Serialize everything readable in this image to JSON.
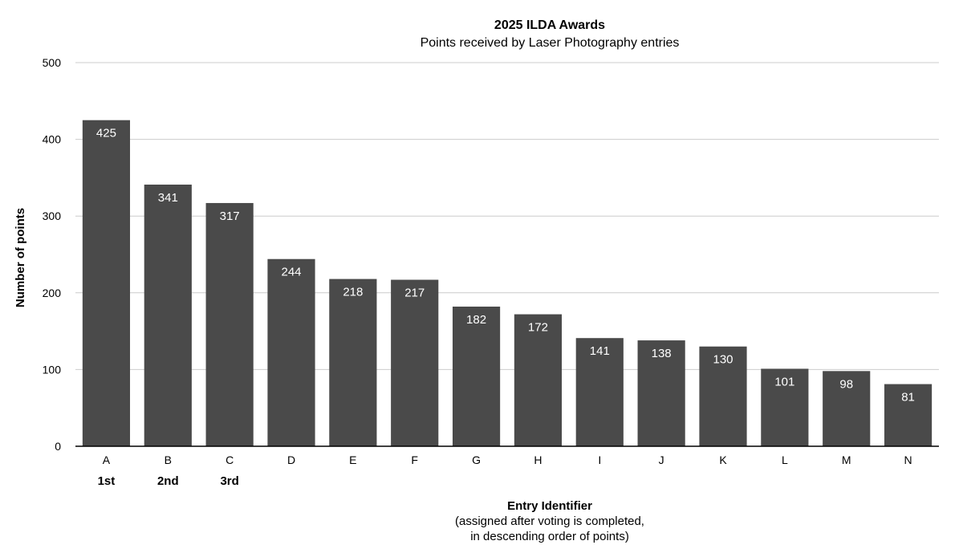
{
  "chart_data": {
    "type": "bar",
    "title": "2025 ILDA Awards",
    "subtitle": "Points received by Laser Photography entries",
    "ylabel": "Number of points",
    "xlabel": "Entry Identifier",
    "xlabel_notes": [
      "(assigned after voting is completed,",
      "in descending order of points)"
    ],
    "categories": [
      "A",
      "B",
      "C",
      "D",
      "E",
      "F",
      "G",
      "H",
      "I",
      "J",
      "K",
      "L",
      "M",
      "N"
    ],
    "ranks": [
      "1st",
      "2nd",
      "3rd",
      "",
      "",
      "",
      "",
      "",
      "",
      "",
      "",
      "",
      "",
      ""
    ],
    "values": [
      425,
      341,
      317,
      244,
      218,
      217,
      182,
      172,
      141,
      138,
      130,
      101,
      98,
      81
    ],
    "ylim": [
      0,
      500
    ],
    "yticks": [
      0,
      100,
      200,
      300,
      400,
      500
    ],
    "grid": true,
    "data_labels": true,
    "bar_color": "#4a4a4a",
    "grid_color": "#cccccc",
    "axis_color": "#000000"
  }
}
